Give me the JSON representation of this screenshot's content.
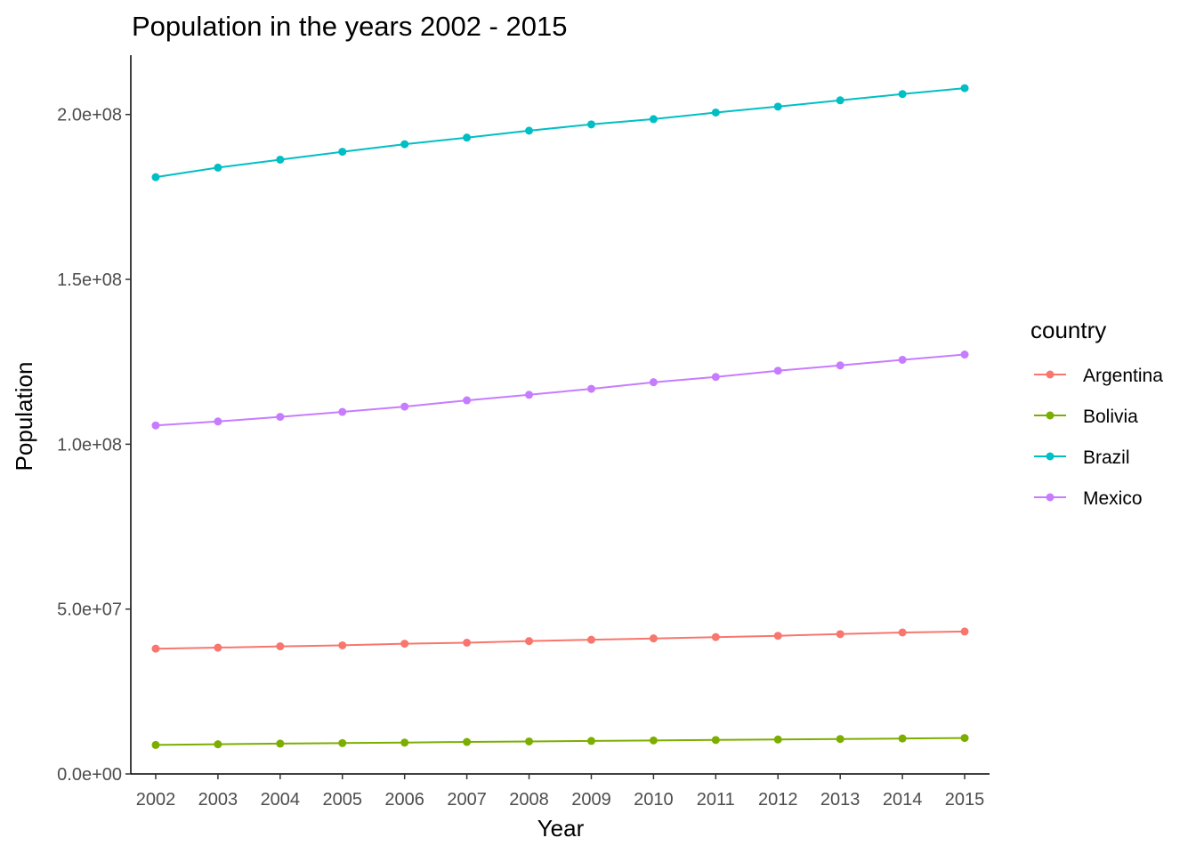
{
  "chart_data": {
    "type": "line",
    "title": "Population in the years 2002 - 2015",
    "xlabel": "Year",
    "ylabel": "Population",
    "x": [
      2002,
      2003,
      2004,
      2005,
      2006,
      2007,
      2008,
      2009,
      2010,
      2011,
      2012,
      2013,
      2014,
      2015
    ],
    "xlim": [
      2001.6,
      2015.4
    ],
    "ylim": [
      0,
      218000000
    ],
    "y_ticks": [
      {
        "value": 0,
        "label": "0.0e+00"
      },
      {
        "value": 50000000,
        "label": "5.0e+07"
      },
      {
        "value": 100000000,
        "label": "1.0e+08"
      },
      {
        "value": 150000000,
        "label": "1.5e+08"
      },
      {
        "value": 200000000,
        "label": "2.0e+08"
      }
    ],
    "x_tick_labels": [
      "2002",
      "2003",
      "2004",
      "2005",
      "2006",
      "2007",
      "2008",
      "2009",
      "2010",
      "2011",
      "2012",
      "2013",
      "2014",
      "2015"
    ],
    "grid": false,
    "legend": {
      "title": "country",
      "position": "right"
    },
    "series": [
      {
        "name": "Argentina",
        "color": "#F8766D",
        "values": [
          38000000,
          38300000,
          38700000,
          39000000,
          39500000,
          39800000,
          40300000,
          40700000,
          41100000,
          41500000,
          41900000,
          42400000,
          42900000,
          43200000
        ]
      },
      {
        "name": "Bolivia",
        "color": "#7CAE00",
        "values": [
          8800000,
          9000000,
          9200000,
          9350000,
          9500000,
          9700000,
          9850000,
          10000000,
          10150000,
          10300000,
          10450000,
          10600000,
          10750000,
          10900000
        ]
      },
      {
        "name": "Brazil",
        "color": "#00BFC4",
        "values": [
          181000000,
          183900000,
          186300000,
          188700000,
          191000000,
          193000000,
          195100000,
          197000000,
          198600000,
          200600000,
          202400000,
          204300000,
          206200000,
          208000000
        ]
      },
      {
        "name": "Mexico",
        "color": "#C77CFF",
        "values": [
          105700000,
          106900000,
          108300000,
          109800000,
          111400000,
          113300000,
          115000000,
          116800000,
          118800000,
          120400000,
          122300000,
          123900000,
          125600000,
          127200000
        ]
      }
    ]
  }
}
